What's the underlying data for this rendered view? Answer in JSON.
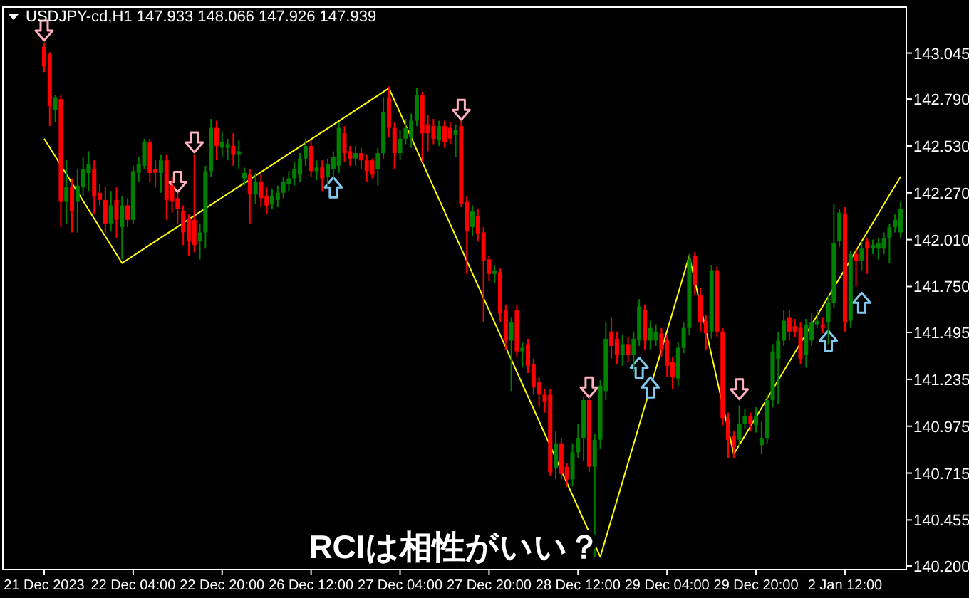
{
  "chart_data": {
    "type": "candlestick",
    "title": "USDJPY-cd,H1  147.933 148.066 147.926 147.939",
    "annotations": [
      "RCIは相性がいい？"
    ],
    "ylim": [
      140.18,
      143.3
    ],
    "categories": [
      "21 Dec 2023",
      null,
      null,
      null,
      null,
      null,
      null,
      null,
      null,
      null,
      null,
      null,
      null,
      null,
      null,
      null,
      "22 Dec 04:00",
      null,
      null,
      null,
      null,
      null,
      null,
      null,
      null,
      null,
      null,
      null,
      null,
      null,
      null,
      null,
      "22 Dec 20:00",
      null,
      null,
      null,
      null,
      null,
      null,
      null,
      null,
      null,
      null,
      null,
      null,
      null,
      null,
      null,
      "26 Dec 12:00",
      null,
      null,
      null,
      null,
      null,
      null,
      null,
      null,
      null,
      null,
      null,
      null,
      null,
      null,
      null,
      "27 Dec 04:00",
      null,
      null,
      null,
      null,
      null,
      null,
      null,
      null,
      null,
      null,
      null,
      null,
      null,
      null,
      null,
      "27 Dec 20:00",
      null,
      null,
      null,
      null,
      null,
      null,
      null,
      null,
      null,
      null,
      null,
      null,
      null,
      null,
      null,
      "28 Dec 12:00",
      null,
      null,
      null,
      null,
      null,
      null,
      null,
      null,
      null,
      null,
      null,
      null,
      null,
      null,
      null,
      "29 Dec 04:00",
      null,
      null,
      null,
      null,
      null,
      null,
      null,
      null,
      null,
      null,
      null,
      null,
      null,
      null,
      null,
      "29 Dec 20:00",
      null,
      null,
      null,
      null,
      null,
      null,
      null,
      null,
      null,
      null,
      null,
      null,
      null,
      null,
      null,
      "2 Jan 12:00",
      null,
      null,
      null,
      null,
      null,
      null,
      null,
      null,
      null,
      null
    ],
    "yticks": [
      {
        "value": 140.2,
        "label": "140.200"
      },
      140.455,
      140.715,
      140.975,
      141.235,
      141.495,
      {
        "value": 141.75,
        "label": "141.750"
      },
      {
        "value": 142.01,
        "label": "142.010"
      },
      {
        "value": 142.27,
        "label": "142.270"
      },
      {
        "value": 142.53,
        "label": "142.530"
      },
      {
        "value": 142.79,
        "label": "142.790"
      },
      143.045
    ],
    "ohlc": [
      [
        143.08,
        143.1,
        142.94,
        142.97
      ],
      [
        143.04,
        143.05,
        142.64,
        142.75
      ],
      [
        142.73,
        142.81,
        142.66,
        142.8
      ],
      [
        142.79,
        142.81,
        142.08,
        142.22
      ],
      [
        142.22,
        142.45,
        142.1,
        142.3
      ],
      [
        142.3,
        142.35,
        142.05,
        142.17
      ],
      [
        142.22,
        142.4,
        142.05,
        142.31
      ],
      [
        142.3,
        142.47,
        142.25,
        142.4
      ],
      [
        142.38,
        142.5,
        142.28,
        142.43
      ],
      [
        142.4,
        142.45,
        142.15,
        142.25
      ],
      [
        142.27,
        142.32,
        142.2,
        142.23
      ],
      [
        142.23,
        142.3,
        142.05,
        142.1
      ],
      [
        142.1,
        142.28,
        142.06,
        142.2
      ],
      [
        142.23,
        142.3,
        142.02,
        142.12
      ],
      [
        142.08,
        142.25,
        141.9,
        142.2
      ],
      [
        142.2,
        142.24,
        142.08,
        142.12
      ],
      [
        142.12,
        142.42,
        142.1,
        142.39
      ],
      [
        142.38,
        142.47,
        142.33,
        142.43
      ],
      [
        142.42,
        142.57,
        142.4,
        142.55
      ],
      [
        142.55,
        142.57,
        142.33,
        142.38
      ],
      [
        142.4,
        142.45,
        142.3,
        142.38
      ],
      [
        142.38,
        142.48,
        142.27,
        142.45
      ],
      [
        142.45,
        142.48,
        142.12,
        142.23
      ],
      [
        142.31,
        142.36,
        142.16,
        142.22
      ],
      [
        142.24,
        142.27,
        142.1,
        142.18
      ],
      [
        142.17,
        142.2,
        141.98,
        142.05
      ],
      [
        142.13,
        142.15,
        141.92,
        142.0
      ],
      [
        142.12,
        142.48,
        141.94,
        141.98
      ],
      [
        142.0,
        142.1,
        141.9,
        142.05
      ],
      [
        142.05,
        142.42,
        141.96,
        142.39
      ],
      [
        142.39,
        142.68,
        142.36,
        142.63
      ],
      [
        142.63,
        142.67,
        142.45,
        142.53
      ],
      [
        142.52,
        142.61,
        142.47,
        142.55
      ],
      [
        142.52,
        142.57,
        142.45,
        142.54
      ],
      [
        142.53,
        142.6,
        142.42,
        142.48
      ],
      [
        142.48,
        142.56,
        142.4,
        142.5
      ],
      [
        142.35,
        142.41,
        142.31,
        142.38
      ],
      [
        142.37,
        142.4,
        142.1,
        142.26
      ],
      [
        142.26,
        142.38,
        142.21,
        142.33
      ],
      [
        142.33,
        142.37,
        142.19,
        142.24
      ],
      [
        142.25,
        142.3,
        142.15,
        142.2
      ],
      [
        142.21,
        142.29,
        142.18,
        142.25
      ],
      [
        142.23,
        142.31,
        142.19,
        142.27
      ],
      [
        142.27,
        142.36,
        142.24,
        142.33
      ],
      [
        142.32,
        142.39,
        142.28,
        142.35
      ],
      [
        142.35,
        142.44,
        142.31,
        142.4
      ],
      [
        142.37,
        142.49,
        142.33,
        142.46
      ],
      [
        142.46,
        142.57,
        142.42,
        142.53
      ],
      [
        142.53,
        142.56,
        142.36,
        142.39
      ],
      [
        142.39,
        142.45,
        142.34,
        142.41
      ],
      [
        142.41,
        142.45,
        142.28,
        142.35
      ],
      [
        142.36,
        142.46,
        142.3,
        142.43
      ],
      [
        142.4,
        142.5,
        142.35,
        142.47
      ],
      [
        142.42,
        142.66,
        142.38,
        142.63
      ],
      [
        142.6,
        142.64,
        142.44,
        142.49
      ],
      [
        142.5,
        142.53,
        142.42,
        142.46
      ],
      [
        142.46,
        142.53,
        142.42,
        142.49
      ],
      [
        142.49,
        142.52,
        142.4,
        142.45
      ],
      [
        142.45,
        142.48,
        142.33,
        142.39
      ],
      [
        142.45,
        142.46,
        142.35,
        142.37
      ],
      [
        142.4,
        142.52,
        142.31,
        142.49
      ],
      [
        142.49,
        142.8,
        142.46,
        142.72
      ],
      [
        142.8,
        142.86,
        142.58,
        142.63
      ],
      [
        142.63,
        142.66,
        142.4,
        142.49
      ],
      [
        142.49,
        142.62,
        142.45,
        142.57
      ],
      [
        142.57,
        142.68,
        142.54,
        142.63
      ],
      [
        142.58,
        142.71,
        142.52,
        142.67
      ],
      [
        142.67,
        142.85,
        142.64,
        142.81
      ],
      [
        142.81,
        142.83,
        142.44,
        142.6
      ],
      [
        142.65,
        142.7,
        142.5,
        142.6
      ],
      [
        142.64,
        142.68,
        142.54,
        142.57
      ],
      [
        142.56,
        142.67,
        142.53,
        142.64
      ],
      [
        142.64,
        142.67,
        142.52,
        142.55
      ],
      [
        142.63,
        142.66,
        142.54,
        142.57
      ],
      [
        142.59,
        142.65,
        142.47,
        142.62
      ],
      [
        142.64,
        142.67,
        142.19,
        142.21
      ],
      [
        142.22,
        142.25,
        141.82,
        142.06
      ],
      [
        142.08,
        142.2,
        142.03,
        142.17
      ],
      [
        142.14,
        142.18,
        142.0,
        142.04
      ],
      [
        142.05,
        142.08,
        141.55,
        141.89
      ],
      [
        141.9,
        141.92,
        141.78,
        141.82
      ],
      [
        141.82,
        141.87,
        141.77,
        141.84
      ],
      [
        141.83,
        141.85,
        141.55,
        141.6
      ],
      [
        141.62,
        141.65,
        141.4,
        141.45
      ],
      [
        141.45,
        141.58,
        141.17,
        141.55
      ],
      [
        141.62,
        141.65,
        141.36,
        141.39
      ],
      [
        141.39,
        141.44,
        141.3,
        141.41
      ],
      [
        141.43,
        141.46,
        141.27,
        141.31
      ],
      [
        141.32,
        141.35,
        141.15,
        141.19
      ],
      [
        141.22,
        141.25,
        141.08,
        141.15
      ],
      [
        141.15,
        141.18,
        141.05,
        141.11
      ],
      [
        141.15,
        141.18,
        140.7,
        140.72
      ],
      [
        140.74,
        140.95,
        140.68,
        140.88
      ],
      [
        140.88,
        140.91,
        140.68,
        140.71
      ],
      [
        140.75,
        140.77,
        140.64,
        140.68
      ],
      [
        140.68,
        140.88,
        140.64,
        140.83
      ],
      [
        140.83,
        140.99,
        140.8,
        140.91
      ],
      [
        140.91,
        141.14,
        140.78,
        141.12
      ],
      [
        141.12,
        141.14,
        140.72,
        140.75
      ],
      [
        140.75,
        140.93,
        140.25,
        140.9
      ],
      [
        140.9,
        141.23,
        140.85,
        141.2
      ],
      [
        141.17,
        141.55,
        141.12,
        141.46
      ],
      [
        141.5,
        141.58,
        141.35,
        141.42
      ],
      [
        141.46,
        141.5,
        141.32,
        141.37
      ],
      [
        141.37,
        141.48,
        141.31,
        141.43
      ],
      [
        141.43,
        141.47,
        141.33,
        141.37
      ],
      [
        141.37,
        141.5,
        141.28,
        141.46
      ],
      [
        141.45,
        141.68,
        141.42,
        141.64
      ],
      [
        141.62,
        141.65,
        141.4,
        141.45
      ],
      [
        141.45,
        141.56,
        141.4,
        141.52
      ],
      [
        141.45,
        141.54,
        141.42,
        141.5
      ],
      [
        141.49,
        141.52,
        141.36,
        141.4
      ],
      [
        141.45,
        141.48,
        141.25,
        141.31
      ],
      [
        141.33,
        141.36,
        141.18,
        141.25
      ],
      [
        141.24,
        141.44,
        141.2,
        141.41
      ],
      [
        141.41,
        141.55,
        141.38,
        141.52
      ],
      [
        141.52,
        141.93,
        141.48,
        141.9
      ],
      [
        141.92,
        141.94,
        141.7,
        141.76
      ],
      [
        141.7,
        141.74,
        141.5,
        141.55
      ],
      [
        141.56,
        141.59,
        141.4,
        141.49
      ],
      [
        141.5,
        141.87,
        141.46,
        141.84
      ],
      [
        141.84,
        141.86,
        141.47,
        141.5
      ],
      [
        141.5,
        141.52,
        140.98,
        141.02
      ],
      [
        141.02,
        141.05,
        140.8,
        140.9
      ],
      [
        140.92,
        140.95,
        140.8,
        140.86
      ],
      [
        140.9,
        141.09,
        140.86,
        140.99
      ],
      [
        140.99,
        141.07,
        140.96,
        141.03
      ],
      [
        141.03,
        141.05,
        140.95,
        140.99
      ],
      [
        140.98,
        141.08,
        140.94,
        141.03
      ],
      [
        140.87,
        141.0,
        140.82,
        140.91
      ],
      [
        140.91,
        141.15,
        140.88,
        141.12
      ],
      [
        141.12,
        141.43,
        141.08,
        141.39
      ],
      [
        141.35,
        141.5,
        141.1,
        141.45
      ],
      [
        141.45,
        141.62,
        141.42,
        141.56
      ],
      [
        141.58,
        141.62,
        141.45,
        141.5
      ],
      [
        141.53,
        141.57,
        141.47,
        141.5
      ],
      [
        141.52,
        141.55,
        141.32,
        141.35
      ],
      [
        141.37,
        141.57,
        141.3,
        141.54
      ],
      [
        141.45,
        141.6,
        141.42,
        141.55
      ],
      [
        141.54,
        141.62,
        141.52,
        141.56
      ],
      [
        141.54,
        141.58,
        141.49,
        141.52
      ],
      [
        141.55,
        141.7,
        141.43,
        141.66
      ],
      [
        141.66,
        142.21,
        141.63,
        141.99
      ],
      [
        142.0,
        142.18,
        141.97,
        142.16
      ],
      [
        142.15,
        142.19,
        141.5,
        141.55
      ],
      [
        141.56,
        141.95,
        141.52,
        141.93
      ],
      [
        141.93,
        141.96,
        141.75,
        141.89
      ],
      [
        141.89,
        142.0,
        141.84,
        141.96
      ],
      [
        142.0,
        142.02,
        141.82,
        141.96
      ],
      [
        141.96,
        142.01,
        141.93,
        141.98
      ],
      [
        141.96,
        142.02,
        141.9,
        141.99
      ],
      [
        141.96,
        142.05,
        141.93,
        142.02
      ],
      [
        142.02,
        142.1,
        141.88,
        142.08
      ],
      [
        142.08,
        142.15,
        142.05,
        142.12
      ],
      [
        142.05,
        142.22,
        142.02,
        142.18
      ]
    ],
    "series": [
      {
        "type": "line",
        "color": "#ffff00",
        "values": [
          142.57,
          null,
          null,
          null,
          null,
          null,
          null,
          null,
          null,
          null,
          null,
          null,
          null,
          null,
          141.88,
          null,
          null,
          null,
          null,
          null,
          null,
          null,
          null,
          null,
          null,
          null,
          null,
          null,
          null,
          null,
          null,
          null,
          null,
          null,
          null,
          null,
          null,
          null,
          null,
          null,
          null,
          null,
          null,
          null,
          null,
          null,
          null,
          null,
          null,
          null,
          null,
          null,
          null,
          null,
          null,
          null,
          null,
          null,
          null,
          null,
          null,
          null,
          142.85,
          null,
          null,
          null,
          null,
          null,
          null,
          null,
          null,
          null,
          null,
          null,
          null,
          null,
          null,
          null,
          null,
          null,
          null,
          null,
          null,
          null,
          null,
          null,
          null,
          null,
          null,
          null,
          null,
          null,
          null,
          null,
          null,
          null,
          null,
          null,
          null,
          null,
          140.25,
          null,
          null,
          null,
          null,
          null,
          null,
          null,
          null,
          null,
          null,
          null,
          null,
          null,
          null,
          null,
          141.92,
          null,
          null,
          null,
          null,
          null,
          null,
          null,
          140.82,
          null,
          null,
          null,
          null,
          null,
          null,
          null,
          null,
          null,
          null,
          null,
          null,
          null,
          null,
          null,
          null,
          null,
          null,
          null,
          null,
          null,
          null,
          null,
          null,
          null,
          null,
          null,
          null,
          null,
          142.36
        ]
      },
      {
        "type": "scatter",
        "color": "#ffb0c0",
        "values": [
          143.17,
          null,
          null,
          null,
          null,
          null,
          null,
          null,
          null,
          null,
          null,
          null,
          null,
          null,
          null,
          null,
          null,
          null,
          null,
          null,
          null,
          null,
          null,
          null,
          142.33,
          null,
          null,
          142.55,
          null,
          null,
          null,
          null,
          null,
          null,
          null,
          null,
          null,
          null,
          null,
          null,
          null,
          null,
          null,
          null,
          null,
          null,
          null,
          null,
          null,
          null,
          null,
          null,
          null,
          null,
          null,
          null,
          null,
          null,
          null,
          null,
          null,
          null,
          null,
          null,
          null,
          null,
          null,
          null,
          null,
          null,
          null,
          null,
          null,
          null,
          null,
          142.73,
          null,
          null,
          null,
          null,
          null,
          null,
          null,
          null,
          null,
          null,
          null,
          null,
          null,
          null,
          null,
          null,
          null,
          null,
          null,
          null,
          null,
          null,
          141.19,
          null,
          null,
          null,
          null,
          null,
          null,
          null,
          null,
          null,
          null,
          null,
          null,
          null,
          null,
          null,
          null,
          null,
          null,
          null,
          null,
          null,
          null,
          null,
          null,
          null,
          null,
          141.18,
          null,
          null,
          null,
          null,
          null,
          null,
          null,
          null,
          null,
          null,
          null,
          null,
          null,
          null,
          null,
          null,
          null,
          null,
          null,
          null,
          null,
          null,
          null,
          null,
          null,
          null,
          null,
          null,
          null
        ]
      },
      {
        "type": "scatter",
        "color": "#7fc8f0",
        "values": [
          null,
          null,
          null,
          null,
          null,
          null,
          null,
          null,
          null,
          null,
          null,
          null,
          null,
          null,
          null,
          null,
          null,
          null,
          null,
          null,
          null,
          null,
          null,
          null,
          null,
          null,
          null,
          null,
          null,
          null,
          null,
          null,
          null,
          null,
          null,
          null,
          null,
          null,
          null,
          null,
          null,
          null,
          null,
          null,
          null,
          null,
          null,
          null,
          null,
          null,
          null,
          null,
          142.3,
          null,
          null,
          null,
          null,
          null,
          null,
          null,
          null,
          null,
          null,
          null,
          null,
          null,
          null,
          null,
          null,
          null,
          null,
          null,
          null,
          null,
          null,
          null,
          null,
          null,
          null,
          null,
          null,
          null,
          null,
          null,
          null,
          null,
          null,
          null,
          null,
          null,
          null,
          null,
          null,
          null,
          null,
          null,
          null,
          null,
          null,
          null,
          null,
          null,
          null,
          null,
          null,
          null,
          null,
          141.3,
          null,
          141.19,
          null,
          null,
          null,
          null,
          null,
          null,
          null,
          null,
          null,
          null,
          null,
          null,
          null,
          null,
          null,
          null,
          null,
          null,
          null,
          null,
          null,
          null,
          null,
          null,
          null,
          null,
          null,
          null,
          null,
          null,
          null,
          141.45,
          null,
          null,
          null,
          null,
          null,
          141.66,
          null,
          null,
          null,
          null,
          null,
          null,
          null
        ]
      }
    ]
  }
}
